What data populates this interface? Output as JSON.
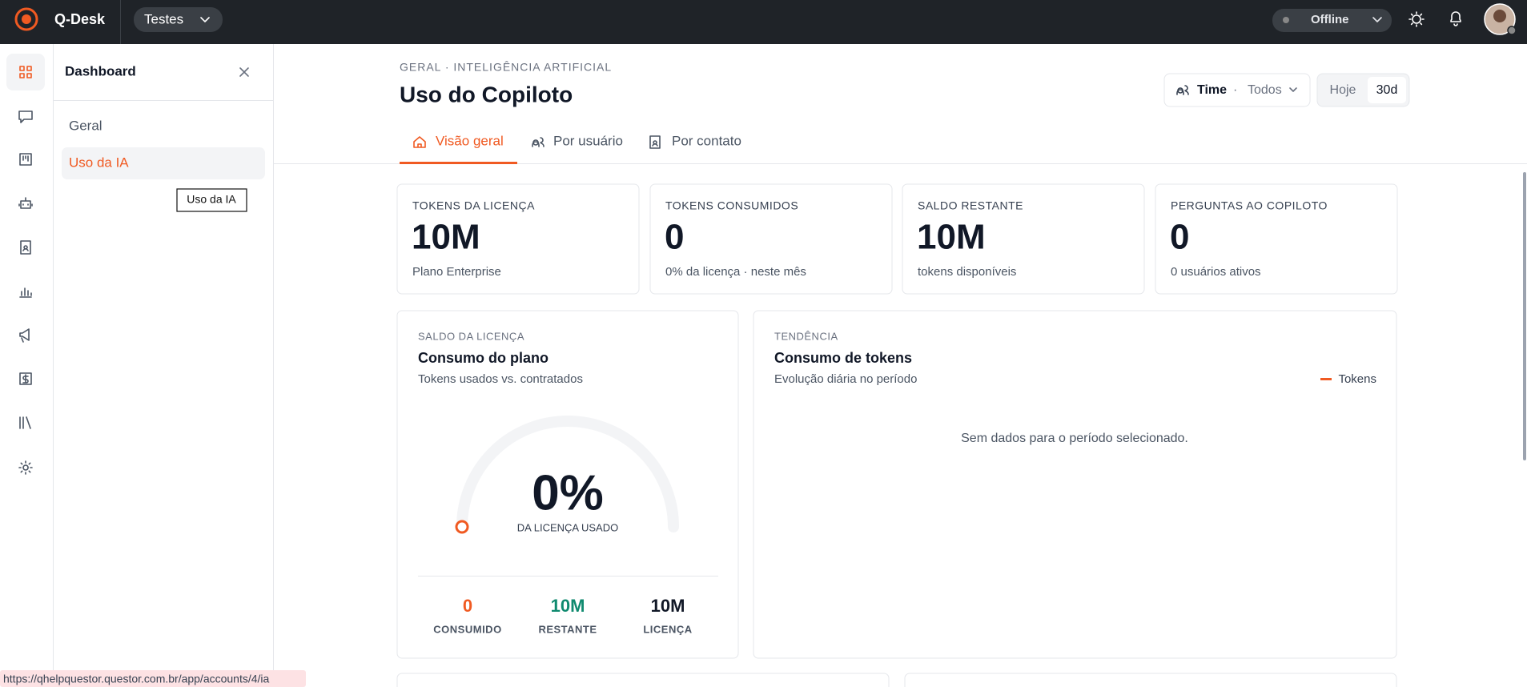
{
  "topbar": {
    "brand": "Q-Desk",
    "workspace": "Testes",
    "status": "Offline"
  },
  "sidebar": {
    "title": "Dashboard",
    "items": [
      "Geral",
      "Uso da IA"
    ],
    "tooltip": "Uso da IA"
  },
  "header": {
    "breadcrumb": "GERAL · INTELIGÊNCIA ARTIFICIAL",
    "title": "Uso do Copiloto",
    "team_filter": {
      "label": "Time",
      "separator": "·",
      "value": "Todos"
    },
    "periods": [
      "Hoje",
      "30d"
    ],
    "tabs": [
      "Visão geral",
      "Por usuário",
      "Por contato"
    ]
  },
  "kpis": [
    {
      "label": "TOKENS DA LICENÇA",
      "value": "10M",
      "note": "Plano Enterprise"
    },
    {
      "label": "TOKENS CONSUMIDOS",
      "value": "0",
      "note": "0% da licença · neste mês"
    },
    {
      "label": "SALDO RESTANTE",
      "value": "10M",
      "note": "tokens disponíveis"
    },
    {
      "label": "PERGUNTAS AO COPILOTO",
      "value": "0",
      "note": "0 usuários ativos"
    }
  ],
  "plan_card": {
    "eyebrow": "SALDO DA LICENÇA",
    "title": "Consumo do plano",
    "subtitle": "Tokens usados vs. contratados",
    "gauge_value": "0%",
    "gauge_label": "DA LICENÇA USADO",
    "stats": [
      {
        "value": "0",
        "label": "CONSUMIDO"
      },
      {
        "value": "10M",
        "label": "RESTANTE"
      },
      {
        "value": "10M",
        "label": "LICENÇA"
      }
    ]
  },
  "trend_card": {
    "eyebrow": "TENDÊNCIA",
    "title": "Consumo de tokens",
    "subtitle": "Evolução diária no período",
    "legend": "Tokens",
    "empty": "Sem dados para o período selecionado."
  },
  "status_url": "https://qhelpquestor.questor.com.br/app/accounts/4/ia"
}
